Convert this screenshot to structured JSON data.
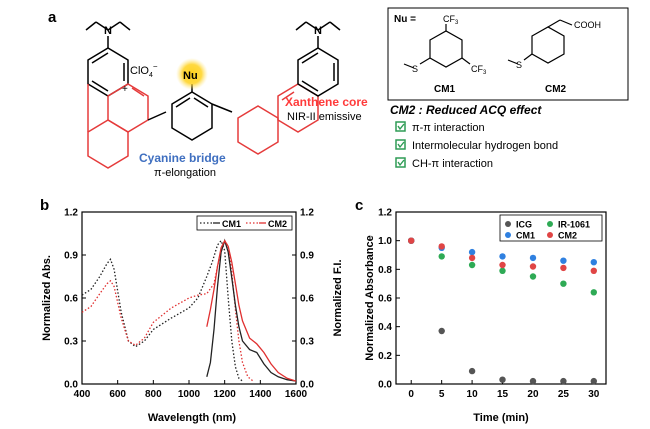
{
  "panels": {
    "a": "a",
    "b": "b",
    "c": "c"
  },
  "structure": {
    "counterion": "ClO",
    "counterion_sub": "4",
    "counterion_sup": "−",
    "oxonium_plus": "+",
    "nu_label": "Nu",
    "xanthene_title": "Xanthene core",
    "xanthene_sub": "NIR-II emissive",
    "cyanine_title": "Cyanine bridge",
    "cyanine_sub": "π-elongation"
  },
  "nu_box": {
    "nu_eq": "Nu =",
    "cf3": "CF",
    "cf3_sub": "3",
    "cooh": "COOH",
    "cm1": "CM1",
    "cm2": "CM2"
  },
  "acq": {
    "title": "CM2 : Reduced ACQ effect",
    "items": [
      "π-π interaction",
      "Intermolecular hydrogen bond",
      "CH-π interaction"
    ]
  },
  "colors": {
    "red_label": "#ff3b3b",
    "blue_label": "#3f6fc0",
    "check_green": "#2e9c55",
    "icg": "#555555",
    "ir1061": "#2eaa55",
    "cm1": "#2f80e0",
    "cm2": "#e04545",
    "nu_glow": "#ffd21f"
  },
  "chart_data": [
    {
      "type": "line",
      "panel": "b",
      "xlabel": "Wavelength (nm)",
      "ylabel": "Normalized Abs.",
      "y2label": "Normalized F.I.",
      "xlim": [
        400,
        1600
      ],
      "ylim": [
        0,
        1.2
      ],
      "x_ticks": [
        400,
        600,
        800,
        1000,
        1200,
        1400,
        1600
      ],
      "y_ticks": [
        0.0,
        0.3,
        0.6,
        0.9,
        1.2
      ],
      "y_tick_labels": [
        "0.0",
        "0.3",
        "0.6",
        "0.9",
        "1.2"
      ],
      "legend": [
        "CM1",
        "CM2"
      ],
      "legend_position": "top-right",
      "series": [
        {
          "name": "CM1",
          "kind": "absorbance",
          "style": "dotted",
          "x": [
            400,
            450,
            500,
            540,
            560,
            580,
            620,
            660,
            700,
            750,
            800,
            900,
            1000,
            1050,
            1100,
            1130,
            1160,
            1180,
            1200,
            1220,
            1240,
            1260,
            1280,
            1300
          ],
          "y": [
            0.62,
            0.66,
            0.75,
            0.84,
            0.87,
            0.8,
            0.5,
            0.3,
            0.26,
            0.3,
            0.38,
            0.46,
            0.53,
            0.6,
            0.75,
            0.85,
            0.97,
            1.0,
            0.93,
            0.6,
            0.3,
            0.12,
            0.04,
            0.02
          ]
        },
        {
          "name": "CM2",
          "kind": "absorbance",
          "style": "dotted",
          "x": [
            400,
            450,
            500,
            540,
            560,
            580,
            620,
            660,
            700,
            750,
            800,
            900,
            1000,
            1050,
            1100,
            1140,
            1170,
            1200,
            1220,
            1240,
            1260,
            1280,
            1300,
            1330,
            1360
          ],
          "y": [
            0.5,
            0.54,
            0.63,
            0.7,
            0.72,
            0.68,
            0.46,
            0.3,
            0.27,
            0.32,
            0.43,
            0.53,
            0.6,
            0.62,
            0.63,
            0.7,
            0.88,
            1.0,
            0.96,
            0.78,
            0.52,
            0.3,
            0.15,
            0.05,
            0.02
          ]
        },
        {
          "name": "CM1",
          "kind": "fluorescence",
          "style": "solid",
          "x": [
            1100,
            1120,
            1140,
            1160,
            1180,
            1200,
            1220,
            1240,
            1260,
            1280,
            1300,
            1340,
            1380,
            1420,
            1460,
            1500,
            1550,
            1600
          ],
          "y": [
            0.05,
            0.15,
            0.38,
            0.68,
            0.92,
            1.0,
            0.92,
            0.74,
            0.55,
            0.4,
            0.3,
            0.24,
            0.22,
            0.14,
            0.08,
            0.05,
            0.03,
            0.02
          ]
        },
        {
          "name": "CM2",
          "kind": "fluorescence",
          "style": "solid",
          "x": [
            1100,
            1120,
            1140,
            1160,
            1180,
            1200,
            1220,
            1240,
            1260,
            1280,
            1300,
            1340,
            1380,
            1420,
            1460,
            1500,
            1550,
            1600
          ],
          "y": [
            0.4,
            0.52,
            0.66,
            0.82,
            0.95,
            1.0,
            0.96,
            0.85,
            0.7,
            0.55,
            0.44,
            0.32,
            0.28,
            0.22,
            0.14,
            0.08,
            0.04,
            0.02
          ]
        }
      ]
    },
    {
      "type": "scatter",
      "panel": "c",
      "xlabel": "Time (min)",
      "ylabel": "Normalized Absorbance",
      "xlim": [
        -2.5,
        32
      ],
      "ylim": [
        0,
        1.2
      ],
      "x_ticks": [
        0,
        5,
        10,
        15,
        20,
        25,
        30
      ],
      "y_ticks": [
        0.0,
        0.2,
        0.4,
        0.6,
        0.8,
        1.0,
        1.2
      ],
      "y_tick_labels": [
        "0.0",
        "0.2",
        "0.4",
        "0.6",
        "0.8",
        "1.0",
        "1.2"
      ],
      "legend_position": "top-right",
      "series": [
        {
          "name": "ICG",
          "x": [
            0,
            5,
            10,
            15,
            20,
            25,
            30
          ],
          "y": [
            1.0,
            0.37,
            0.09,
            0.03,
            0.02,
            0.02,
            0.02
          ]
        },
        {
          "name": "IR-1061",
          "x": [
            0,
            5,
            10,
            15,
            20,
            25,
            30
          ],
          "y": [
            1.0,
            0.89,
            0.83,
            0.79,
            0.75,
            0.7,
            0.64
          ]
        },
        {
          "name": "CM1",
          "x": [
            0,
            5,
            10,
            15,
            20,
            25,
            30
          ],
          "y": [
            1.0,
            0.95,
            0.92,
            0.89,
            0.88,
            0.86,
            0.85
          ]
        },
        {
          "name": "CM2",
          "x": [
            0,
            5,
            10,
            15,
            20,
            25,
            30
          ],
          "y": [
            1.0,
            0.96,
            0.88,
            0.83,
            0.82,
            0.81,
            0.79
          ]
        }
      ]
    }
  ]
}
